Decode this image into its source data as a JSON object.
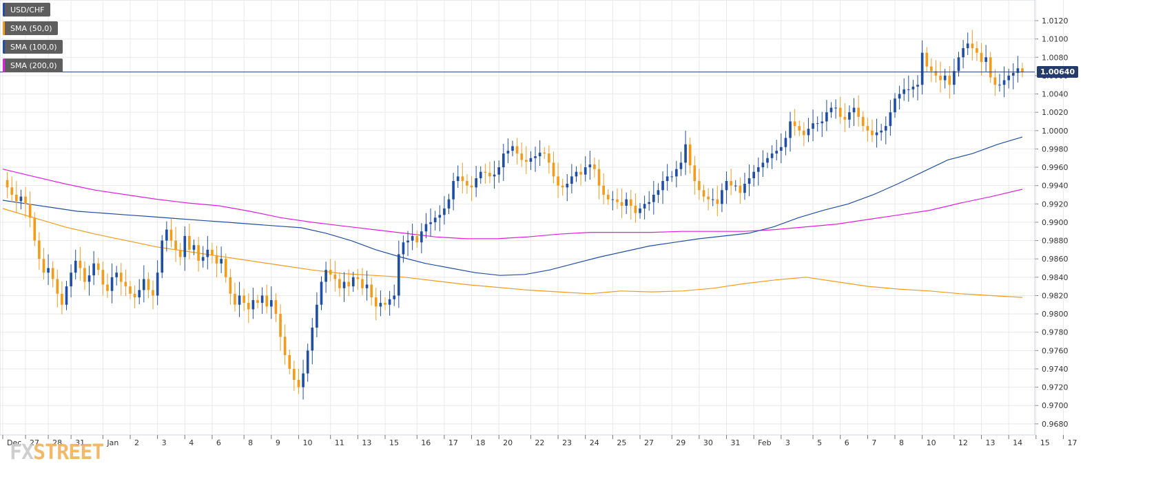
{
  "legend": {
    "items": [
      {
        "label": "USD/CHF",
        "color": "#1f4ea3"
      },
      {
        "label": "SMA (50,0)",
        "color": "#f39c1c"
      },
      {
        "label": "SMA (100,0)",
        "color": "#1f4ea3"
      },
      {
        "label": "SMA (200,0)",
        "color": "#e01ee0"
      }
    ]
  },
  "last_price_label": "1.00640",
  "watermark": {
    "part1": "FX",
    "part2": "STREET"
  },
  "colors": {
    "up": "#1f4ea3",
    "down": "#f39c1c",
    "sma50": "#f39c1c",
    "sma100": "#1f4ea3",
    "sma200": "#e01ee0",
    "grid": "#e9e9e9",
    "price_line": "#243b6b"
  },
  "chart_data": {
    "type": "candlestick",
    "title": "USD/CHF",
    "ylim": [
      0.968,
      1.013
    ],
    "y_ticks": [
      "1.0120",
      "1.0100",
      "1.0080",
      "1.0060",
      "1.0040",
      "1.0020",
      "1.0000",
      "0.9980",
      "0.9960",
      "0.9940",
      "0.9920",
      "0.9900",
      "0.9880",
      "0.9860",
      "0.9840",
      "0.9820",
      "0.9800",
      "0.9780",
      "0.9760",
      "0.9740",
      "0.9720",
      "0.9700",
      "0.9680"
    ],
    "x_ticks": [
      {
        "label": "Dec",
        "i": 0
      },
      {
        "label": "27",
        "i": 5
      },
      {
        "label": "28",
        "i": 10
      },
      {
        "label": "31",
        "i": 15
      },
      {
        "label": "Jan",
        "i": 22
      },
      {
        "label": "2",
        "i": 28
      },
      {
        "label": "3",
        "i": 34
      },
      {
        "label": "4",
        "i": 40
      },
      {
        "label": "6",
        "i": 46
      },
      {
        "label": "8",
        "i": 53
      },
      {
        "label": "9",
        "i": 59
      },
      {
        "label": "10",
        "i": 65
      },
      {
        "label": "11",
        "i": 72
      },
      {
        "label": "13",
        "i": 78
      },
      {
        "label": "15",
        "i": 84
      },
      {
        "label": "16",
        "i": 91
      },
      {
        "label": "17",
        "i": 97
      },
      {
        "label": "18",
        "i": 103
      },
      {
        "label": "20",
        "i": 109
      },
      {
        "label": "22",
        "i": 116
      },
      {
        "label": "23",
        "i": 122
      },
      {
        "label": "24",
        "i": 128
      },
      {
        "label": "25",
        "i": 134
      },
      {
        "label": "27",
        "i": 140
      },
      {
        "label": "29",
        "i": 147
      },
      {
        "label": "30",
        "i": 153
      },
      {
        "label": "31",
        "i": 159
      },
      {
        "label": "Feb",
        "i": 165
      },
      {
        "label": "3",
        "i": 171
      },
      {
        "label": "5",
        "i": 178
      },
      {
        "label": "6",
        "i": 184
      },
      {
        "label": "7",
        "i": 190
      },
      {
        "label": "8",
        "i": 196
      },
      {
        "label": "10",
        "i": 202
      },
      {
        "label": "12",
        "i": 209
      },
      {
        "label": "13",
        "i": 215
      },
      {
        "label": "14",
        "i": 221
      },
      {
        "label": "15",
        "i": 227
      },
      {
        "label": "17",
        "i": 233
      }
    ],
    "last_price": 1.0064,
    "closes": [
      0.9946,
      0.9938,
      0.993,
      0.9923,
      0.9928,
      0.992,
      0.9905,
      0.988,
      0.986,
      0.9845,
      0.985,
      0.9838,
      0.9822,
      0.981,
      0.983,
      0.9845,
      0.9858,
      0.985,
      0.9835,
      0.9842,
      0.9855,
      0.9848,
      0.9832,
      0.9825,
      0.984,
      0.9845,
      0.9835,
      0.983,
      0.9822,
      0.9818,
      0.9826,
      0.9838,
      0.9826,
      0.982,
      0.9845,
      0.988,
      0.9892,
      0.988,
      0.987,
      0.9862,
      0.9885,
      0.987,
      0.9875,
      0.9858,
      0.9862,
      0.987,
      0.9864,
      0.9855,
      0.986,
      0.984,
      0.9822,
      0.981,
      0.982,
      0.9812,
      0.9805,
      0.9815,
      0.9812,
      0.982,
      0.9808,
      0.9815,
      0.98,
      0.9775,
      0.9755,
      0.974,
      0.9728,
      0.972,
      0.9735,
      0.976,
      0.9785,
      0.981,
      0.9835,
      0.9848,
      0.9843,
      0.9838,
      0.9828,
      0.9835,
      0.983,
      0.984,
      0.9838,
      0.9828,
      0.9832,
      0.9818,
      0.9808,
      0.9812,
      0.981,
      0.9816,
      0.982,
      0.9865,
      0.9878,
      0.988,
      0.9885,
      0.9878,
      0.989,
      0.9898,
      0.99,
      0.9905,
      0.9908,
      0.9915,
      0.9925,
      0.9945,
      0.995,
      0.9945,
      0.994,
      0.9938,
      0.9948,
      0.9955,
      0.9954,
      0.995,
      0.9952,
      0.996,
      0.9975,
      0.9978,
      0.9983,
      0.9975,
      0.9968,
      0.9966,
      0.997,
      0.9972,
      0.9976,
      0.9975,
      0.9965,
      0.995,
      0.994,
      0.9938,
      0.9942,
      0.995,
      0.9955,
      0.9952,
      0.996,
      0.9963,
      0.9958,
      0.994,
      0.993,
      0.9925,
      0.9925,
      0.9922,
      0.9918,
      0.9925,
      0.9918,
      0.991,
      0.9915,
      0.992,
      0.9922,
      0.993,
      0.9935,
      0.9945,
      0.995,
      0.995,
      0.9958,
      0.9965,
      0.9985,
      0.9962,
      0.9945,
      0.9935,
      0.9928,
      0.9925,
      0.9925,
      0.992,
      0.9935,
      0.9945,
      0.994,
      0.994,
      0.9932,
      0.9942,
      0.9948,
      0.9955,
      0.996,
      0.9965,
      0.997,
      0.9975,
      0.9978,
      0.9982,
      0.9992,
      1.001,
      1.0005,
      1.0,
      0.9995,
      1.0002,
      1.0008,
      1.0008,
      1.001,
      1.002,
      1.0025,
      1.0025,
      1.0015,
      1.0012,
      1.002,
      1.0025,
      1.0015,
      1.0005,
      1.0,
      0.9995,
      0.9998,
      1.0,
      1.0005,
      1.002,
      1.0035,
      1.004,
      1.0045,
      1.0045,
      1.0048,
      1.005,
      1.0085,
      1.007,
      1.0065,
      1.006,
      1.0055,
      1.006,
      1.005,
      1.0065,
      1.008,
      1.009,
      1.0095,
      1.009,
      1.0085,
      1.0075,
      1.008,
      1.0058,
      1.005,
      1.005,
      1.0055,
      1.006,
      1.0063,
      1.0068,
      1.0064
    ],
    "sma50": [
      0.9915,
      0.9905,
      0.9895,
      0.9887,
      0.988,
      0.9873,
      0.9868,
      0.9863,
      0.9858,
      0.9853,
      0.9848,
      0.9844,
      0.9842,
      0.984,
      0.9836,
      0.9832,
      0.9829,
      0.9826,
      0.9824,
      0.9822,
      0.9825,
      0.9824,
      0.9825,
      0.9828,
      0.9833,
      0.9837,
      0.984,
      0.9835,
      0.983,
      0.9827,
      0.9825,
      0.9822,
      0.982,
      0.9818
    ],
    "sma100": [
      0.9924,
      0.992,
      0.9916,
      0.9912,
      0.991,
      0.9908,
      0.9906,
      0.9904,
      0.9902,
      0.99,
      0.9898,
      0.9896,
      0.9894,
      0.9888,
      0.988,
      0.987,
      0.9862,
      0.9855,
      0.985,
      0.9845,
      0.9842,
      0.9843,
      0.9848,
      0.9855,
      0.9862,
      0.9868,
      0.9874,
      0.9878,
      0.9882,
      0.9885,
      0.9888,
      0.9895,
      0.9905,
      0.9913,
      0.992,
      0.993,
      0.9942,
      0.9955,
      0.9968,
      0.9975,
      0.9985,
      0.9993
    ],
    "sma200": [
      0.9958,
      0.995,
      0.9942,
      0.9935,
      0.993,
      0.9925,
      0.9921,
      0.9918,
      0.9912,
      0.9905,
      0.99,
      0.9896,
      0.9892,
      0.9888,
      0.9884,
      0.9882,
      0.9882,
      0.9884,
      0.9887,
      0.9889,
      0.9889,
      0.9889,
      0.989,
      0.989,
      0.989,
      0.9892,
      0.9895,
      0.9898,
      0.9903,
      0.9908,
      0.9913,
      0.9921,
      0.9928,
      0.9936
    ]
  }
}
